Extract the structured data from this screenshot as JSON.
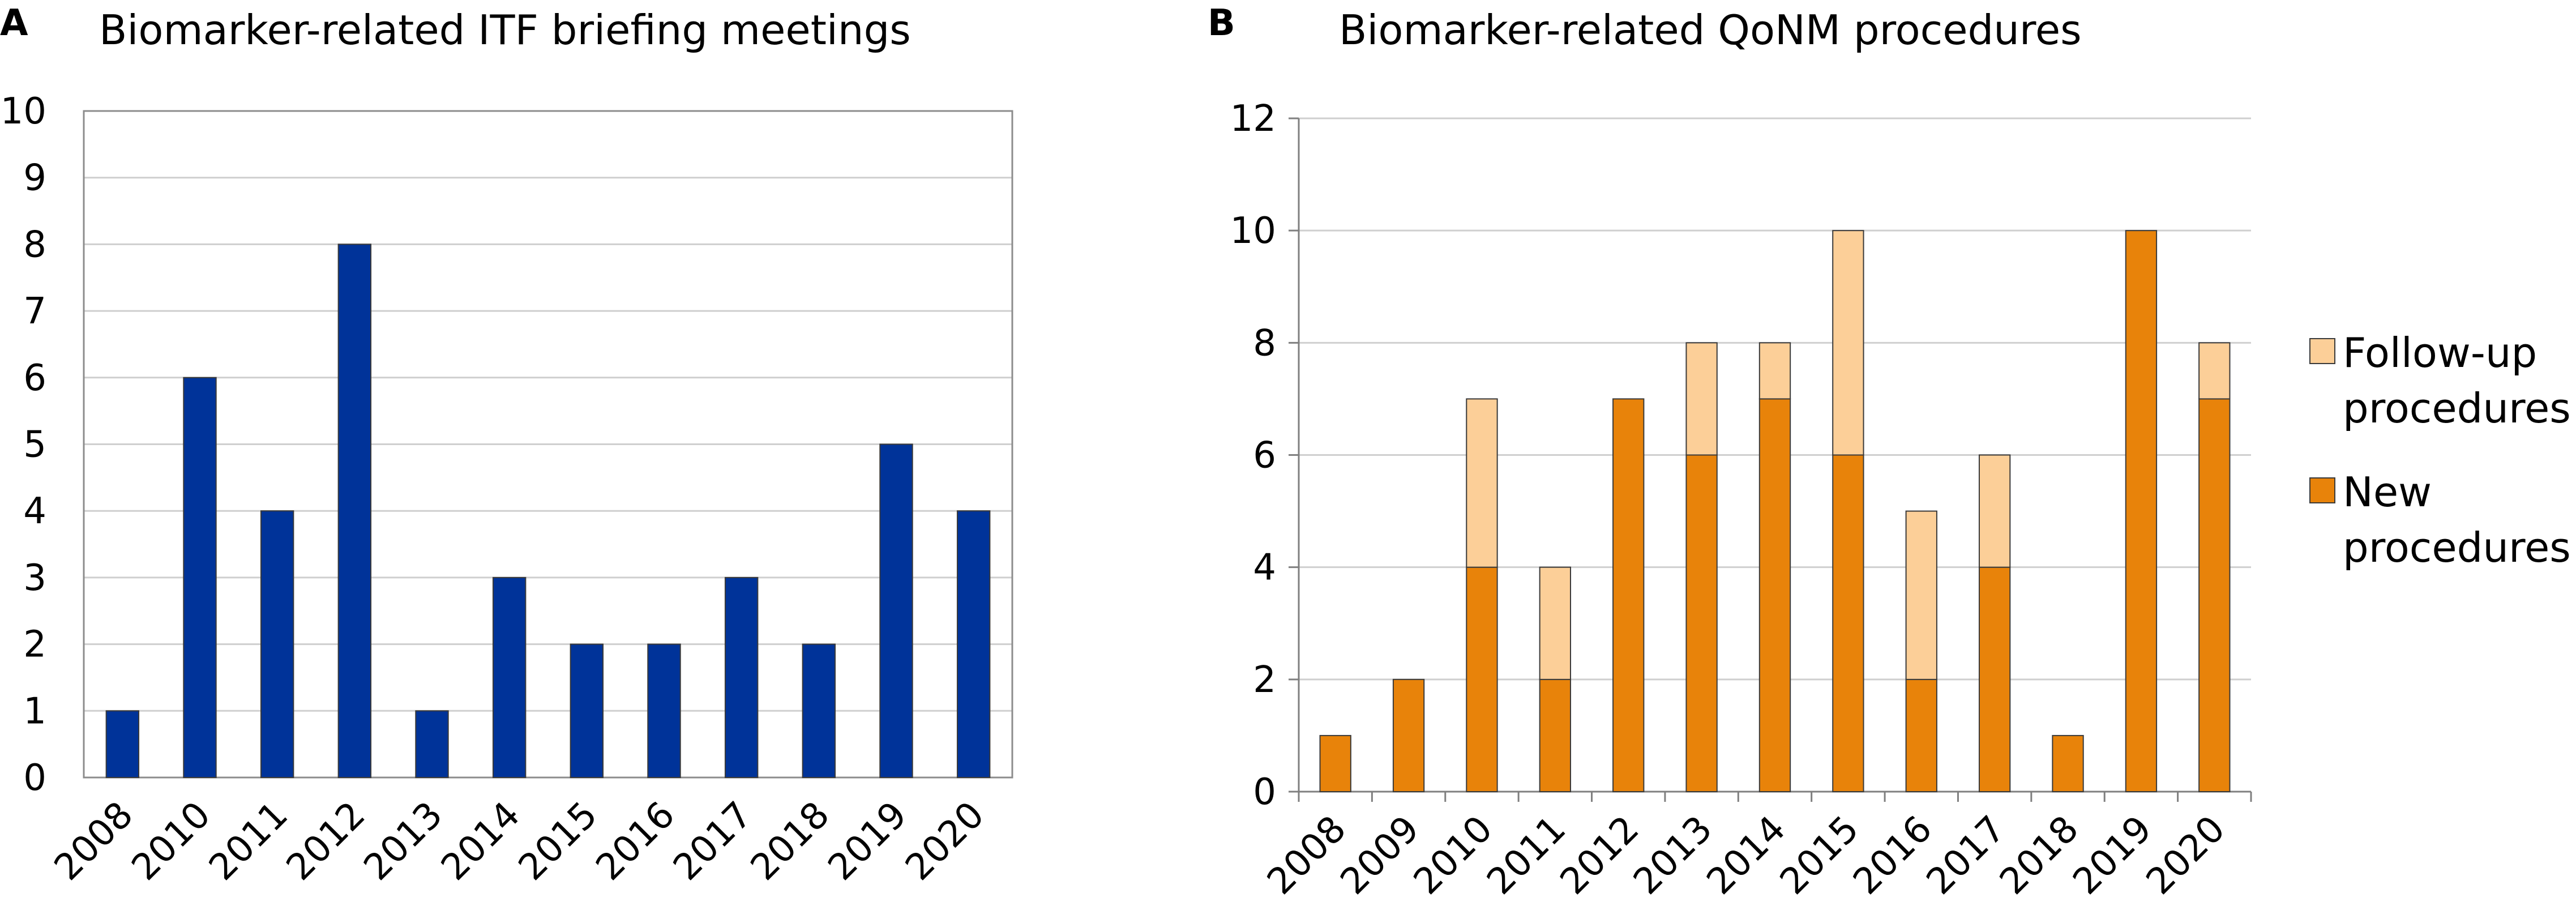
{
  "colors": {
    "itf_bar": "#003399",
    "new_procedures": "#E8830A",
    "follow_up_procedures": "#FCCF98"
  },
  "chart_data": [
    {
      "panel": "A",
      "type": "bar",
      "title": "Biomarker-related ITF briefing meetings",
      "xlabel": "",
      "ylabel": "",
      "categories": [
        "2008",
        "2010",
        "2011",
        "2012",
        "2013",
        "2014",
        "2015",
        "2016",
        "2017",
        "2018",
        "2019",
        "2020"
      ],
      "values": [
        1,
        6,
        4,
        8,
        1,
        3,
        2,
        2,
        3,
        2,
        5,
        4
      ],
      "ylim": [
        0,
        10
      ],
      "yticks": [
        0,
        1,
        2,
        3,
        4,
        5,
        6,
        7,
        8,
        9,
        10
      ],
      "grid": true
    },
    {
      "panel": "B",
      "type": "bar",
      "stacked": true,
      "title": "Biomarker-related QoNM procedures",
      "xlabel": "",
      "ylabel": "",
      "categories": [
        "2008",
        "2009",
        "2010",
        "2011",
        "2012",
        "2013",
        "2014",
        "2015",
        "2016",
        "2017",
        "2018",
        "2019",
        "2020"
      ],
      "series": [
        {
          "name": "New procedures",
          "values": [
            1,
            2,
            4,
            2,
            7,
            6,
            7,
            6,
            2,
            4,
            1,
            10,
            7
          ]
        },
        {
          "name": "Follow-up procedures",
          "values": [
            0,
            0,
            3,
            2,
            0,
            2,
            1,
            4,
            3,
            2,
            0,
            0,
            1
          ]
        }
      ],
      "ylim": [
        0,
        12
      ],
      "yticks": [
        0,
        2,
        4,
        6,
        8,
        10,
        12
      ],
      "grid": true,
      "legend": {
        "position": "right",
        "entries": [
          {
            "series": "Follow-up procedures",
            "lines": [
              "Follow-up",
              "procedures"
            ]
          },
          {
            "series": "New procedures",
            "lines": [
              "New",
              "procedures"
            ]
          }
        ]
      }
    }
  ]
}
